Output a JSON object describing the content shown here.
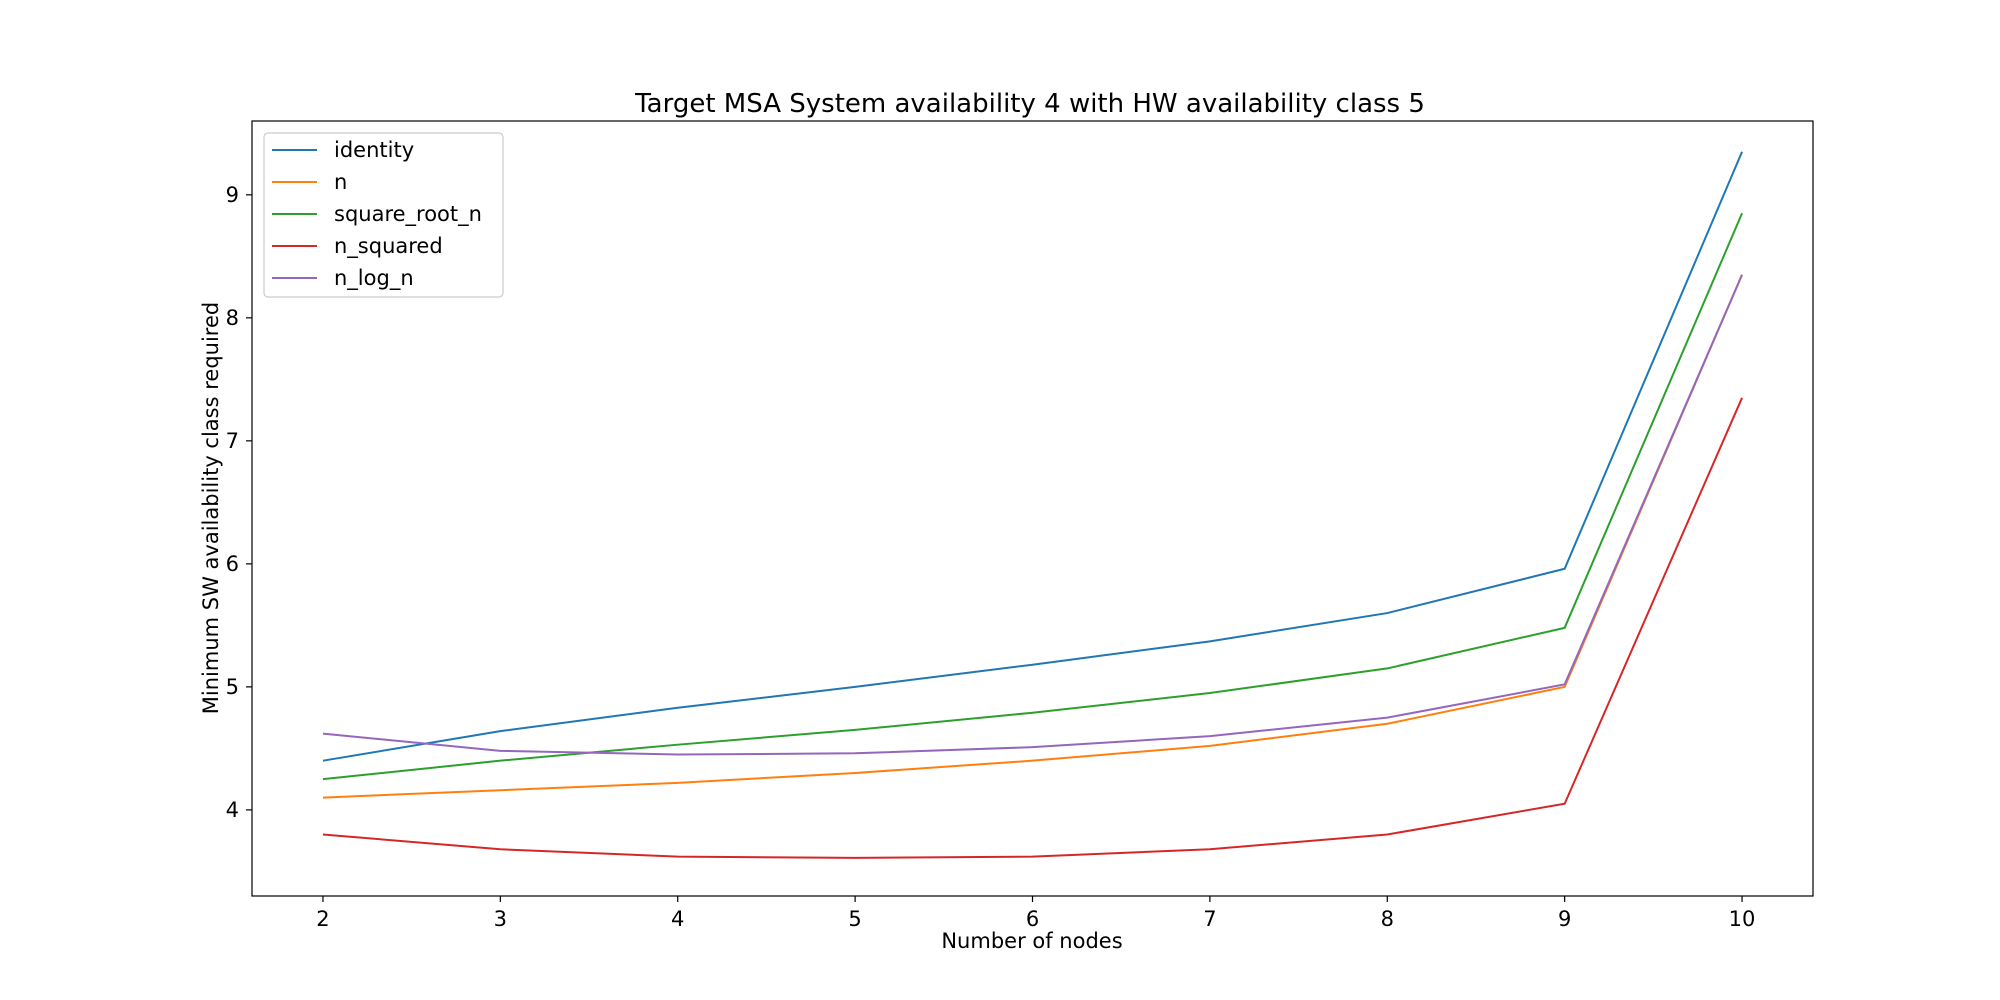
{
  "chart_data": {
    "type": "line",
    "title": "Target MSA System availability 4 with HW availability class 5",
    "xlabel": "Number of nodes",
    "ylabel": "Minimum SW availability class required",
    "x": [
      2,
      3,
      4,
      5,
      6,
      7,
      8,
      9,
      10
    ],
    "xlim": [
      1.6,
      10.4
    ],
    "ylim": [
      3.3,
      9.6
    ],
    "xticks": [
      2,
      3,
      4,
      5,
      6,
      7,
      8,
      9,
      10
    ],
    "yticks": [
      4,
      5,
      6,
      7,
      8,
      9
    ],
    "grid": false,
    "legend_position": "upper-left",
    "series": [
      {
        "name": "identity",
        "color": "#1f77b4",
        "values": [
          4.4,
          4.64,
          4.83,
          5.0,
          5.18,
          5.37,
          5.6,
          5.96,
          9.35
        ]
      },
      {
        "name": "n",
        "color": "#ff7f0e",
        "values": [
          4.1,
          4.16,
          4.22,
          4.3,
          4.4,
          4.52,
          4.7,
          5.0,
          8.35
        ]
      },
      {
        "name": "square_root_n",
        "color": "#2ca02c",
        "values": [
          4.25,
          4.4,
          4.53,
          4.65,
          4.79,
          4.95,
          5.15,
          5.48,
          8.85
        ]
      },
      {
        "name": "n_squared",
        "color": "#d62728",
        "values": [
          3.8,
          3.68,
          3.62,
          3.61,
          3.62,
          3.68,
          3.8,
          4.05,
          7.35
        ]
      },
      {
        "name": "n_log_n",
        "color": "#9467bd",
        "values": [
          4.62,
          4.48,
          4.45,
          4.46,
          4.51,
          4.6,
          4.75,
          5.02,
          8.35
        ]
      }
    ]
  }
}
